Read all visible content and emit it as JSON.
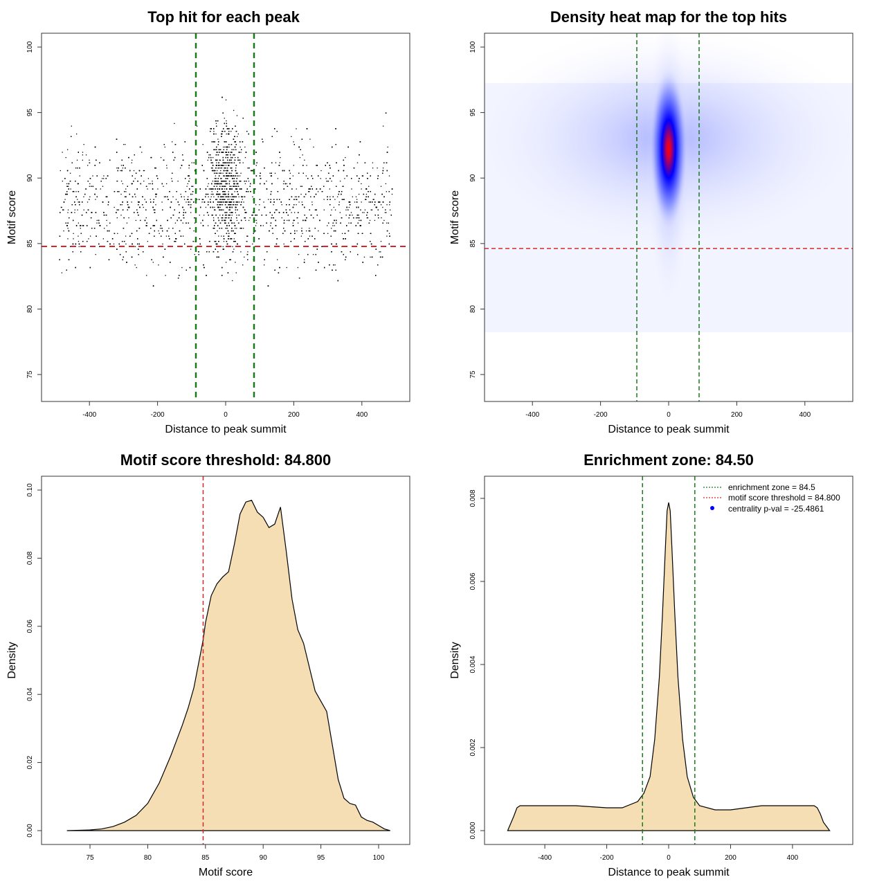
{
  "chart_data": [
    {
      "type": "scatter",
      "title": "Top hit for each peak",
      "xlabel": "Distance to peak summit",
      "ylabel": "Motif score",
      "xlim": [
        -500,
        500
      ],
      "ylim": [
        74,
        100
      ],
      "xticks": [
        "-400",
        "-200",
        "0",
        "200",
        "400"
      ],
      "yticks": [
        "75",
        "80",
        "85",
        "90",
        "95",
        "100"
      ],
      "point_color": "#000000",
      "scores_range": [
        74,
        100
      ],
      "hline": {
        "value": 84.8,
        "color": "#d62728"
      },
      "vlines": {
        "values": [
          -84.5,
          84.5
        ],
        "color": "#1a7a1a"
      }
    },
    {
      "type": "heatmap",
      "title": "Density heat map for the top hits",
      "xlabel": "Distance to peak summit",
      "ylabel": "Motif score",
      "xlim": [
        -500,
        500
      ],
      "ylim": [
        74,
        100
      ],
      "xticks": [
        "-400",
        "-200",
        "0",
        "200",
        "400"
      ],
      "yticks": [
        "75",
        "80",
        "85",
        "90",
        "95",
        "100"
      ],
      "hotspot": {
        "x": 0,
        "y": 92
      },
      "colors": [
        "#ffffff",
        "#0000ff",
        "#ff0000"
      ],
      "hline": {
        "value": 84.8,
        "color": "#d62728"
      },
      "vlines": {
        "values": [
          -84.5,
          84.5
        ],
        "color": "#1a7a1a"
      }
    },
    {
      "type": "area",
      "title": "Motif score threshold: 84.800",
      "xlabel": "Motif score",
      "ylabel": "Density",
      "xlim": [
        72,
        101.5
      ],
      "ylim": [
        0,
        0.1
      ],
      "xticks": [
        "75",
        "80",
        "85",
        "90",
        "95",
        "100"
      ],
      "yticks": [
        "0.00",
        "0.02",
        "0.04",
        "0.06",
        "0.08",
        "0.10"
      ],
      "fill": "#f5deb3",
      "x": [
        73,
        75,
        76,
        77,
        78,
        79,
        80,
        81,
        82,
        83,
        83.5,
        84,
        84.8,
        85,
        85.5,
        86,
        86.5,
        87,
        87.5,
        88,
        88.5,
        89,
        89.5,
        90,
        90.5,
        91,
        91.5,
        92,
        92.5,
        93,
        93.5,
        94,
        94.5,
        95,
        95.5,
        96,
        96.5,
        97,
        97.5,
        98,
        98.5,
        99,
        99.5,
        100,
        100.5,
        101
      ],
      "y": [
        0.0,
        0.0002,
        0.0005,
        0.0012,
        0.0025,
        0.0045,
        0.008,
        0.014,
        0.022,
        0.031,
        0.036,
        0.042,
        0.056,
        0.061,
        0.069,
        0.0725,
        0.0745,
        0.076,
        0.084,
        0.093,
        0.0965,
        0.097,
        0.0935,
        0.092,
        0.089,
        0.09,
        0.095,
        0.082,
        0.068,
        0.059,
        0.055,
        0.048,
        0.041,
        0.038,
        0.035,
        0.025,
        0.015,
        0.0095,
        0.008,
        0.0075,
        0.004,
        0.003,
        0.0025,
        0.0015,
        0.0005,
        0.0
      ],
      "vline": {
        "value": 84.8,
        "color": "#d62728"
      }
    },
    {
      "type": "area",
      "title": "Enrichment zone: 84.50",
      "xlabel": "Distance to peak summit",
      "ylabel": "Density",
      "xlim": [
        -550,
        550
      ],
      "ylim": [
        0,
        0.0082
      ],
      "xticks": [
        "-400",
        "-200",
        "0",
        "200",
        "400"
      ],
      "yticks": [
        "0.000",
        "0.002",
        "0.004",
        "0.006",
        "0.008"
      ],
      "fill": "#f5deb3",
      "x": [
        -520,
        -500,
        -490,
        -480,
        -400,
        -300,
        -200,
        -150,
        -100,
        -80,
        -60,
        -45,
        -30,
        -20,
        -10,
        -5,
        0,
        5,
        10,
        20,
        30,
        45,
        60,
        80,
        100,
        150,
        200,
        300,
        400,
        470,
        480,
        490,
        500,
        520
      ],
      "y": [
        0.0,
        0.00035,
        0.00055,
        0.0006,
        0.0006,
        0.0006,
        0.00055,
        0.00055,
        0.0007,
        0.0009,
        0.0013,
        0.0022,
        0.0037,
        0.0052,
        0.0069,
        0.0077,
        0.0079,
        0.0077,
        0.0069,
        0.0052,
        0.0037,
        0.0022,
        0.0013,
        0.0008,
        0.0006,
        0.0005,
        0.0005,
        0.0006,
        0.0006,
        0.0006,
        0.00055,
        0.0004,
        0.0002,
        0.0
      ],
      "vlines": {
        "values": [
          -84.5,
          84.5
        ],
        "color": "#1a7a1a"
      },
      "legend": {
        "position": "top-right",
        "items": [
          {
            "label": "enrichment zone = 84.5",
            "kind": "line",
            "color": "#1a7a1a"
          },
          {
            "label": "motif score threshold = 84.800",
            "kind": "line",
            "color": "#d62728"
          },
          {
            "label": "centrality p-val = -25.4861",
            "kind": "point",
            "color": "#0000ff"
          }
        ]
      }
    }
  ]
}
